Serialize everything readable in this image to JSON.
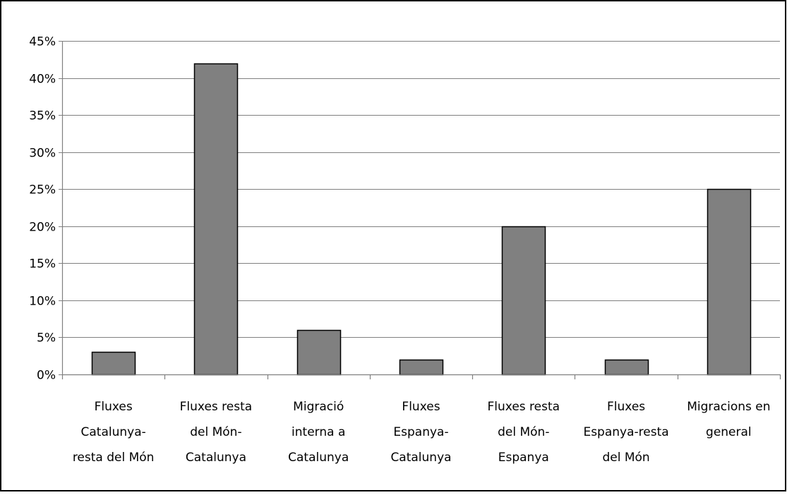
{
  "chart_data": {
    "type": "bar",
    "categories": [
      [
        "Fluxes",
        "Catalunya-",
        "resta del Món"
      ],
      [
        "Fluxes resta",
        "del Món-",
        "Catalunya"
      ],
      [
        "Migració",
        "interna a",
        "Catalunya"
      ],
      [
        "Fluxes",
        "Espanya-",
        "Catalunya"
      ],
      [
        "Fluxes resta",
        "del Món-",
        "Espanya"
      ],
      [
        "Fluxes",
        "Espanya-resta",
        "del Món"
      ],
      [
        "Migracions en",
        "general"
      ]
    ],
    "values": [
      3,
      42,
      6,
      2,
      20,
      2,
      25
    ],
    "ylim": [
      0,
      45
    ],
    "ytick_step": 5,
    "ytick_suffix": "%",
    "grid": true,
    "legend": "none",
    "colors": {
      "bar_fill": "#808080",
      "bar_stroke": "#000000",
      "grid": "#808080",
      "axis": "#808080",
      "frame": "#000000"
    }
  }
}
